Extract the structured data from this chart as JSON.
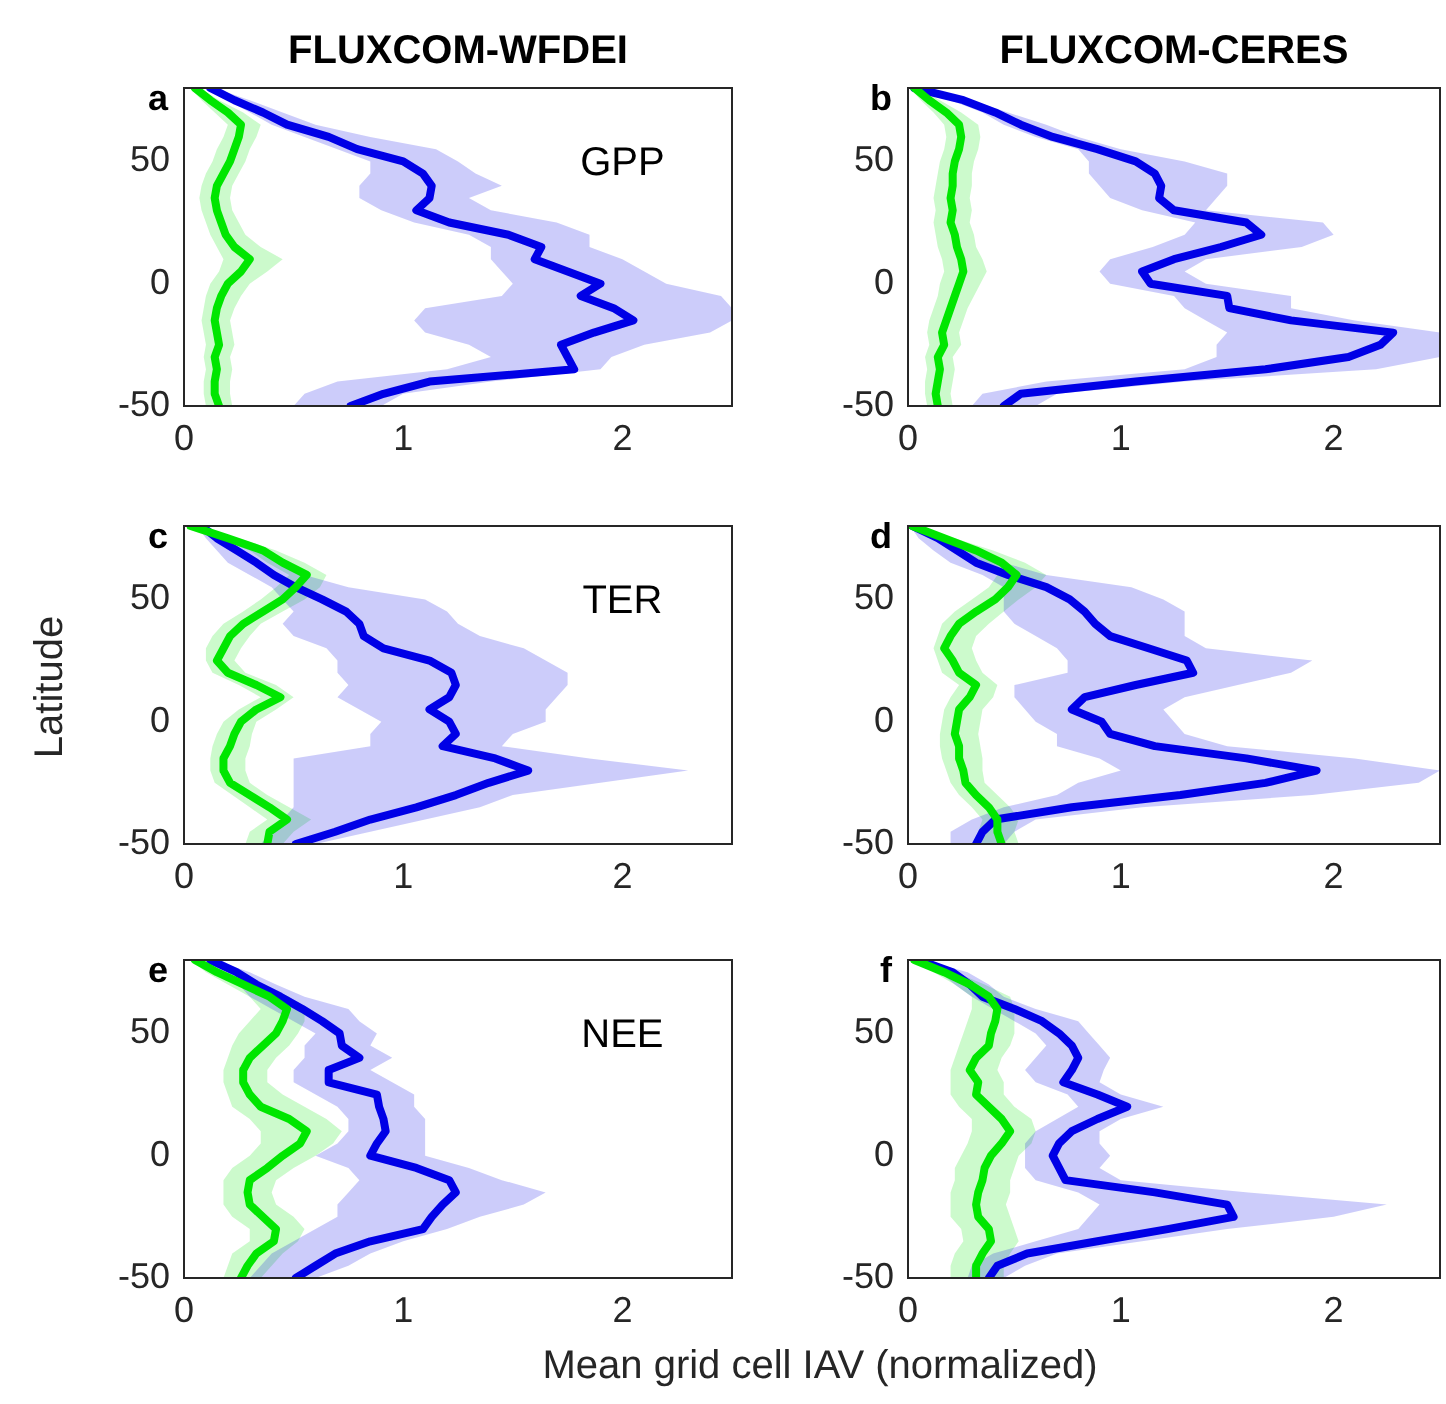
{
  "chart_data": [
    {
      "type": "line",
      "orientation": "horizontal",
      "title": "FLUXCOM-WFDEI",
      "annotations": [
        "a",
        "GPP"
      ],
      "legend": false,
      "xlim": [
        0,
        2.5
      ],
      "xticks": [
        0,
        1,
        2
      ],
      "ylim": [
        -50,
        80
      ],
      "yticks": [
        -50,
        0,
        50
      ],
      "x": [
        80,
        75,
        70,
        65,
        60,
        55,
        50,
        45,
        40,
        35,
        30,
        25,
        20,
        15,
        10,
        5,
        0,
        -5,
        -10,
        -15,
        -20,
        -25,
        -30,
        -35,
        -40,
        -45,
        -50
      ],
      "series": [
        {
          "color": "#00e600",
          "values": [
            0.05,
            0.12,
            0.2,
            0.26,
            0.25,
            0.23,
            0.21,
            0.18,
            0.15,
            0.14,
            0.15,
            0.17,
            0.19,
            0.23,
            0.3,
            0.26,
            0.2,
            0.17,
            0.15,
            0.14,
            0.15,
            0.16,
            0.14,
            0.15,
            0.14,
            0.14,
            0.16
          ],
          "lower": [
            0.03,
            0.08,
            0.14,
            0.2,
            0.18,
            0.15,
            0.13,
            0.1,
            0.08,
            0.07,
            0.08,
            0.1,
            0.12,
            0.15,
            0.18,
            0.16,
            0.12,
            0.1,
            0.09,
            0.08,
            0.09,
            0.1,
            0.09,
            0.1,
            0.09,
            0.09,
            0.1
          ],
          "upper": [
            0.07,
            0.16,
            0.27,
            0.35,
            0.33,
            0.3,
            0.28,
            0.25,
            0.22,
            0.21,
            0.22,
            0.25,
            0.28,
            0.35,
            0.45,
            0.38,
            0.3,
            0.26,
            0.23,
            0.21,
            0.22,
            0.23,
            0.21,
            0.22,
            0.21,
            0.21,
            0.22
          ]
        },
        {
          "color": "#0000e6",
          "values": [
            0.12,
            0.23,
            0.36,
            0.47,
            0.66,
            0.79,
            1.0,
            1.09,
            1.13,
            1.12,
            1.06,
            1.21,
            1.48,
            1.63,
            1.6,
            1.75,
            1.9,
            1.81,
            1.96,
            2.05,
            1.87,
            1.72,
            1.75,
            1.78,
            1.12,
            0.91,
            0.76
          ],
          "lower": [
            0.1,
            0.2,
            0.3,
            0.4,
            0.55,
            0.7,
            0.85,
            0.85,
            0.8,
            0.8,
            0.9,
            1.05,
            1.3,
            1.4,
            1.4,
            1.45,
            1.5,
            1.45,
            1.1,
            1.05,
            1.1,
            1.3,
            1.4,
            1.2,
            0.7,
            0.55,
            0.5
          ],
          "upper": [
            0.14,
            0.3,
            0.45,
            0.6,
            0.85,
            1.15,
            1.25,
            1.33,
            1.45,
            1.3,
            1.4,
            1.7,
            1.85,
            1.85,
            2.0,
            2.1,
            2.2,
            2.45,
            2.5,
            2.5,
            2.4,
            2.1,
            1.95,
            1.9,
            1.4,
            1.0,
            0.9
          ]
        }
      ]
    },
    {
      "type": "line",
      "orientation": "horizontal",
      "title": "FLUXCOM-CERES",
      "annotations": [
        "b"
      ],
      "legend": false,
      "xlim": [
        0,
        2.5
      ],
      "xticks": [
        0,
        1,
        2
      ],
      "ylim": [
        -50,
        80
      ],
      "yticks": [
        -50,
        0,
        50
      ],
      "x": [
        80,
        75,
        70,
        65,
        60,
        55,
        50,
        45,
        40,
        35,
        30,
        25,
        20,
        15,
        10,
        5,
        0,
        -5,
        -10,
        -15,
        -20,
        -25,
        -30,
        -35,
        -40,
        -45,
        -50
      ],
      "series": [
        {
          "color": "#00e600",
          "values": [
            0.03,
            0.1,
            0.18,
            0.24,
            0.25,
            0.24,
            0.22,
            0.21,
            0.21,
            0.2,
            0.21,
            0.2,
            0.22,
            0.23,
            0.25,
            0.26,
            0.24,
            0.22,
            0.2,
            0.18,
            0.16,
            0.17,
            0.14,
            0.15,
            0.14,
            0.13,
            0.14
          ],
          "lower": [
            0.01,
            0.06,
            0.12,
            0.17,
            0.18,
            0.17,
            0.15,
            0.14,
            0.13,
            0.12,
            0.13,
            0.12,
            0.13,
            0.14,
            0.16,
            0.17,
            0.15,
            0.14,
            0.12,
            0.1,
            0.09,
            0.1,
            0.08,
            0.09,
            0.08,
            0.08,
            0.09
          ],
          "upper": [
            0.05,
            0.15,
            0.25,
            0.33,
            0.34,
            0.33,
            0.31,
            0.3,
            0.3,
            0.29,
            0.3,
            0.29,
            0.31,
            0.32,
            0.35,
            0.37,
            0.34,
            0.31,
            0.28,
            0.26,
            0.24,
            0.25,
            0.21,
            0.22,
            0.21,
            0.2,
            0.21
          ]
        },
        {
          "color": "#0000e6",
          "values": [
            0.03,
            0.26,
            0.41,
            0.53,
            0.68,
            0.89,
            1.07,
            1.16,
            1.19,
            1.18,
            1.25,
            1.59,
            1.66,
            1.47,
            1.25,
            1.1,
            1.14,
            1.5,
            1.51,
            1.8,
            2.28,
            2.22,
            2.07,
            1.68,
            1.07,
            0.53,
            0.45
          ],
          "lower": [
            0.02,
            0.2,
            0.35,
            0.45,
            0.6,
            0.8,
            0.85,
            0.85,
            0.9,
            0.95,
            1.1,
            1.35,
            1.3,
            1.15,
            0.95,
            0.9,
            0.95,
            1.25,
            1.3,
            1.4,
            1.5,
            1.45,
            1.45,
            1.3,
            0.65,
            0.35,
            0.3
          ],
          "upper": [
            0.05,
            0.3,
            0.47,
            0.65,
            0.8,
            1.0,
            1.3,
            1.5,
            1.5,
            1.45,
            1.4,
            1.95,
            2.0,
            1.85,
            1.4,
            1.3,
            1.4,
            1.8,
            1.8,
            2.1,
            2.5,
            2.5,
            2.5,
            2.2,
            1.3,
            0.7,
            0.6
          ]
        }
      ]
    },
    {
      "type": "line",
      "orientation": "horizontal",
      "ylabel": "Latitude",
      "annotations": [
        "c",
        "TER"
      ],
      "legend": false,
      "xlim": [
        0,
        2.5
      ],
      "xticks": [
        0,
        1,
        2
      ],
      "ylim": [
        -50,
        80
      ],
      "yticks": [
        -50,
        0,
        50
      ],
      "x": [
        80,
        75,
        70,
        65,
        60,
        55,
        50,
        45,
        40,
        35,
        30,
        25,
        20,
        15,
        10,
        5,
        0,
        -5,
        -10,
        -15,
        -20,
        -25,
        -30,
        -35,
        -40,
        -45,
        -50
      ],
      "series": [
        {
          "color": "#00e600",
          "values": [
            0.03,
            0.2,
            0.36,
            0.45,
            0.56,
            0.51,
            0.45,
            0.36,
            0.27,
            0.21,
            0.18,
            0.15,
            0.2,
            0.33,
            0.44,
            0.33,
            0.26,
            0.23,
            0.21,
            0.18,
            0.18,
            0.21,
            0.3,
            0.39,
            0.47,
            0.39,
            0.38
          ],
          "lower": [
            0.02,
            0.15,
            0.3,
            0.38,
            0.48,
            0.42,
            0.35,
            0.27,
            0.18,
            0.13,
            0.1,
            0.1,
            0.13,
            0.25,
            0.35,
            0.25,
            0.18,
            0.15,
            0.13,
            0.12,
            0.12,
            0.14,
            0.22,
            0.3,
            0.38,
            0.3,
            0.28
          ],
          "upper": [
            0.05,
            0.25,
            0.42,
            0.55,
            0.65,
            0.62,
            0.55,
            0.45,
            0.35,
            0.3,
            0.26,
            0.23,
            0.28,
            0.42,
            0.5,
            0.42,
            0.33,
            0.31,
            0.3,
            0.28,
            0.28,
            0.3,
            0.38,
            0.48,
            0.58,
            0.5,
            0.45
          ]
        },
        {
          "color": "#0000e6",
          "values": [
            0.08,
            0.15,
            0.24,
            0.33,
            0.41,
            0.51,
            0.63,
            0.74,
            0.8,
            0.82,
            0.91,
            1.12,
            1.22,
            1.24,
            1.21,
            1.12,
            1.21,
            1.24,
            1.18,
            1.42,
            1.57,
            1.39,
            1.24,
            1.06,
            0.85,
            0.69,
            0.51
          ],
          "lower": [
            0.06,
            0.1,
            0.15,
            0.2,
            0.3,
            0.4,
            0.45,
            0.5,
            0.45,
            0.5,
            0.65,
            0.7,
            0.7,
            0.75,
            0.7,
            0.8,
            0.9,
            0.85,
            0.85,
            0.5,
            0.5,
            0.5,
            0.5,
            0.5,
            0.45,
            0.4,
            0.35
          ],
          "upper": [
            0.1,
            0.2,
            0.32,
            0.45,
            0.55,
            0.75,
            1.1,
            1.2,
            1.25,
            1.35,
            1.55,
            1.65,
            1.75,
            1.75,
            1.7,
            1.65,
            1.65,
            1.5,
            1.45,
            1.85,
            2.3,
            1.9,
            1.5,
            1.35,
            1.1,
            0.85,
            0.6
          ]
        }
      ]
    },
    {
      "type": "line",
      "orientation": "horizontal",
      "annotations": [
        "d"
      ],
      "legend": false,
      "xlim": [
        0,
        2.5
      ],
      "xticks": [
        0,
        1,
        2
      ],
      "ylim": [
        -50,
        80
      ],
      "yticks": [
        -50,
        0,
        50
      ],
      "x": [
        80,
        75,
        70,
        65,
        60,
        55,
        50,
        45,
        40,
        35,
        30,
        25,
        20,
        15,
        10,
        5,
        0,
        -5,
        -10,
        -15,
        -20,
        -25,
        -30,
        -35,
        -40,
        -45,
        -50
      ],
      "series": [
        {
          "color": "#00e600",
          "values": [
            0.02,
            0.17,
            0.32,
            0.44,
            0.51,
            0.47,
            0.41,
            0.32,
            0.24,
            0.2,
            0.17,
            0.21,
            0.24,
            0.32,
            0.29,
            0.24,
            0.23,
            0.22,
            0.24,
            0.24,
            0.26,
            0.27,
            0.32,
            0.38,
            0.42,
            0.42,
            0.44
          ],
          "lower": [
            0.01,
            0.12,
            0.25,
            0.36,
            0.42,
            0.38,
            0.3,
            0.22,
            0.16,
            0.14,
            0.12,
            0.14,
            0.16,
            0.24,
            0.2,
            0.17,
            0.16,
            0.15,
            0.15,
            0.16,
            0.18,
            0.2,
            0.24,
            0.3,
            0.35,
            0.33,
            0.35
          ],
          "upper": [
            0.04,
            0.22,
            0.4,
            0.55,
            0.65,
            0.6,
            0.52,
            0.45,
            0.38,
            0.32,
            0.3,
            0.32,
            0.35,
            0.42,
            0.4,
            0.35,
            0.34,
            0.33,
            0.34,
            0.35,
            0.35,
            0.36,
            0.42,
            0.48,
            0.52,
            0.5,
            0.52
          ]
        },
        {
          "color": "#0000e6",
          "values": [
            0.02,
            0.14,
            0.23,
            0.32,
            0.47,
            0.65,
            0.76,
            0.83,
            0.88,
            0.95,
            1.13,
            1.31,
            1.34,
            1.07,
            0.83,
            0.77,
            0.91,
            0.95,
            1.16,
            1.59,
            1.92,
            1.68,
            1.28,
            0.77,
            0.41,
            0.35,
            0.32
          ],
          "lower": [
            0.01,
            0.05,
            0.12,
            0.2,
            0.35,
            0.45,
            0.45,
            0.45,
            0.5,
            0.6,
            0.7,
            0.75,
            0.75,
            0.5,
            0.5,
            0.55,
            0.6,
            0.7,
            0.7,
            0.9,
            1.0,
            0.8,
            0.7,
            0.45,
            0.3,
            0.2,
            0.2
          ],
          "upper": [
            0.05,
            0.2,
            0.3,
            0.45,
            0.65,
            1.05,
            1.2,
            1.3,
            1.3,
            1.3,
            1.4,
            1.9,
            1.8,
            1.55,
            1.3,
            1.2,
            1.25,
            1.3,
            1.5,
            2.1,
            2.5,
            2.4,
            1.9,
            1.1,
            0.6,
            0.5,
            0.45
          ]
        }
      ]
    },
    {
      "type": "line",
      "orientation": "horizontal",
      "xlabel": "Mean grid cell IAV (normalized)",
      "annotations": [
        "e",
        "NEE"
      ],
      "legend": false,
      "xlim": [
        0,
        2.5
      ],
      "xticks": [
        0,
        1,
        2
      ],
      "ylim": [
        -50,
        80
      ],
      "yticks": [
        -50,
        0,
        50
      ],
      "x": [
        80,
        75,
        70,
        65,
        60,
        55,
        50,
        45,
        40,
        35,
        30,
        25,
        20,
        15,
        10,
        5,
        0,
        -5,
        -10,
        -15,
        -20,
        -25,
        -30,
        -35,
        -40,
        -45,
        -50
      ],
      "series": [
        {
          "color": "#00e600",
          "values": [
            0.05,
            0.15,
            0.27,
            0.39,
            0.47,
            0.45,
            0.42,
            0.36,
            0.3,
            0.27,
            0.27,
            0.3,
            0.35,
            0.48,
            0.56,
            0.53,
            0.45,
            0.38,
            0.3,
            0.29,
            0.3,
            0.36,
            0.42,
            0.41,
            0.33,
            0.29,
            0.26
          ],
          "lower": [
            0.03,
            0.1,
            0.2,
            0.3,
            0.35,
            0.3,
            0.25,
            0.22,
            0.2,
            0.18,
            0.18,
            0.2,
            0.22,
            0.3,
            0.35,
            0.35,
            0.3,
            0.22,
            0.18,
            0.18,
            0.18,
            0.22,
            0.3,
            0.3,
            0.22,
            0.2,
            0.18
          ],
          "upper": [
            0.07,
            0.2,
            0.35,
            0.48,
            0.55,
            0.55,
            0.52,
            0.48,
            0.42,
            0.38,
            0.38,
            0.45,
            0.55,
            0.65,
            0.72,
            0.68,
            0.6,
            0.5,
            0.42,
            0.4,
            0.42,
            0.5,
            0.55,
            0.52,
            0.45,
            0.4,
            0.35
          ]
        },
        {
          "color": "#0000e6",
          "values": [
            0.12,
            0.24,
            0.33,
            0.44,
            0.54,
            0.63,
            0.71,
            0.72,
            0.8,
            0.66,
            0.66,
            0.88,
            0.89,
            0.91,
            0.92,
            0.88,
            0.85,
            1.06,
            1.21,
            1.24,
            1.18,
            1.13,
            1.09,
            0.85,
            0.69,
            0.6,
            0.51
          ],
          "lower": [
            0.1,
            0.2,
            0.25,
            0.3,
            0.4,
            0.5,
            0.6,
            0.55,
            0.55,
            0.5,
            0.5,
            0.6,
            0.7,
            0.75,
            0.75,
            0.7,
            0.6,
            0.75,
            0.8,
            0.75,
            0.7,
            0.7,
            0.6,
            0.5,
            0.4,
            0.35,
            0.3
          ],
          "upper": [
            0.14,
            0.3,
            0.42,
            0.55,
            0.75,
            0.8,
            0.88,
            0.85,
            0.95,
            0.85,
            0.95,
            1.05,
            1.05,
            1.1,
            1.1,
            1.1,
            1.1,
            1.3,
            1.45,
            1.65,
            1.55,
            1.35,
            1.2,
            1.0,
            0.85,
            0.75,
            0.6
          ]
        }
      ]
    },
    {
      "type": "line",
      "orientation": "horizontal",
      "annotations": [
        "f"
      ],
      "legend": false,
      "xlim": [
        0,
        2.5
      ],
      "xticks": [
        0,
        1,
        2
      ],
      "ylim": [
        -50,
        80
      ],
      "yticks": [
        -50,
        0,
        50
      ],
      "x": [
        80,
        75,
        70,
        65,
        60,
        55,
        50,
        45,
        40,
        35,
        30,
        25,
        20,
        15,
        10,
        5,
        0,
        -5,
        -10,
        -15,
        -20,
        -25,
        -30,
        -35,
        -40,
        -45,
        -50
      ],
      "series": [
        {
          "color": "#00e600",
          "values": [
            0.03,
            0.17,
            0.29,
            0.38,
            0.42,
            0.41,
            0.39,
            0.38,
            0.32,
            0.29,
            0.33,
            0.32,
            0.38,
            0.44,
            0.48,
            0.44,
            0.39,
            0.36,
            0.35,
            0.33,
            0.32,
            0.33,
            0.38,
            0.39,
            0.35,
            0.32,
            0.32
          ],
          "lower": [
            0.02,
            0.12,
            0.22,
            0.3,
            0.3,
            0.28,
            0.26,
            0.24,
            0.22,
            0.2,
            0.2,
            0.2,
            0.24,
            0.3,
            0.3,
            0.28,
            0.25,
            0.22,
            0.22,
            0.2,
            0.2,
            0.2,
            0.25,
            0.26,
            0.22,
            0.2,
            0.2
          ],
          "upper": [
            0.05,
            0.22,
            0.36,
            0.48,
            0.5,
            0.5,
            0.5,
            0.48,
            0.44,
            0.42,
            0.45,
            0.45,
            0.5,
            0.58,
            0.6,
            0.58,
            0.52,
            0.5,
            0.48,
            0.48,
            0.46,
            0.48,
            0.5,
            0.52,
            0.48,
            0.45,
            0.45
          ]
        },
        {
          "color": "#0000e6",
          "values": [
            0.05,
            0.21,
            0.29,
            0.35,
            0.5,
            0.63,
            0.71,
            0.77,
            0.8,
            0.77,
            0.73,
            0.89,
            1.03,
            0.89,
            0.77,
            0.71,
            0.68,
            0.71,
            0.74,
            1.16,
            1.5,
            1.53,
            1.22,
            0.89,
            0.56,
            0.42,
            0.38
          ],
          "lower": [
            0.03,
            0.15,
            0.22,
            0.3,
            0.4,
            0.5,
            0.6,
            0.65,
            0.6,
            0.55,
            0.6,
            0.75,
            0.8,
            0.7,
            0.6,
            0.55,
            0.55,
            0.55,
            0.6,
            0.8,
            0.9,
            0.85,
            0.8,
            0.6,
            0.4,
            0.3,
            0.28
          ],
          "upper": [
            0.07,
            0.28,
            0.38,
            0.45,
            0.6,
            0.8,
            0.85,
            0.9,
            0.95,
            0.92,
            0.9,
            1.0,
            1.2,
            1.0,
            0.9,
            0.9,
            0.95,
            0.9,
            1.0,
            1.6,
            2.25,
            2.0,
            1.5,
            1.1,
            0.7,
            0.55,
            0.45
          ]
        }
      ]
    }
  ]
}
